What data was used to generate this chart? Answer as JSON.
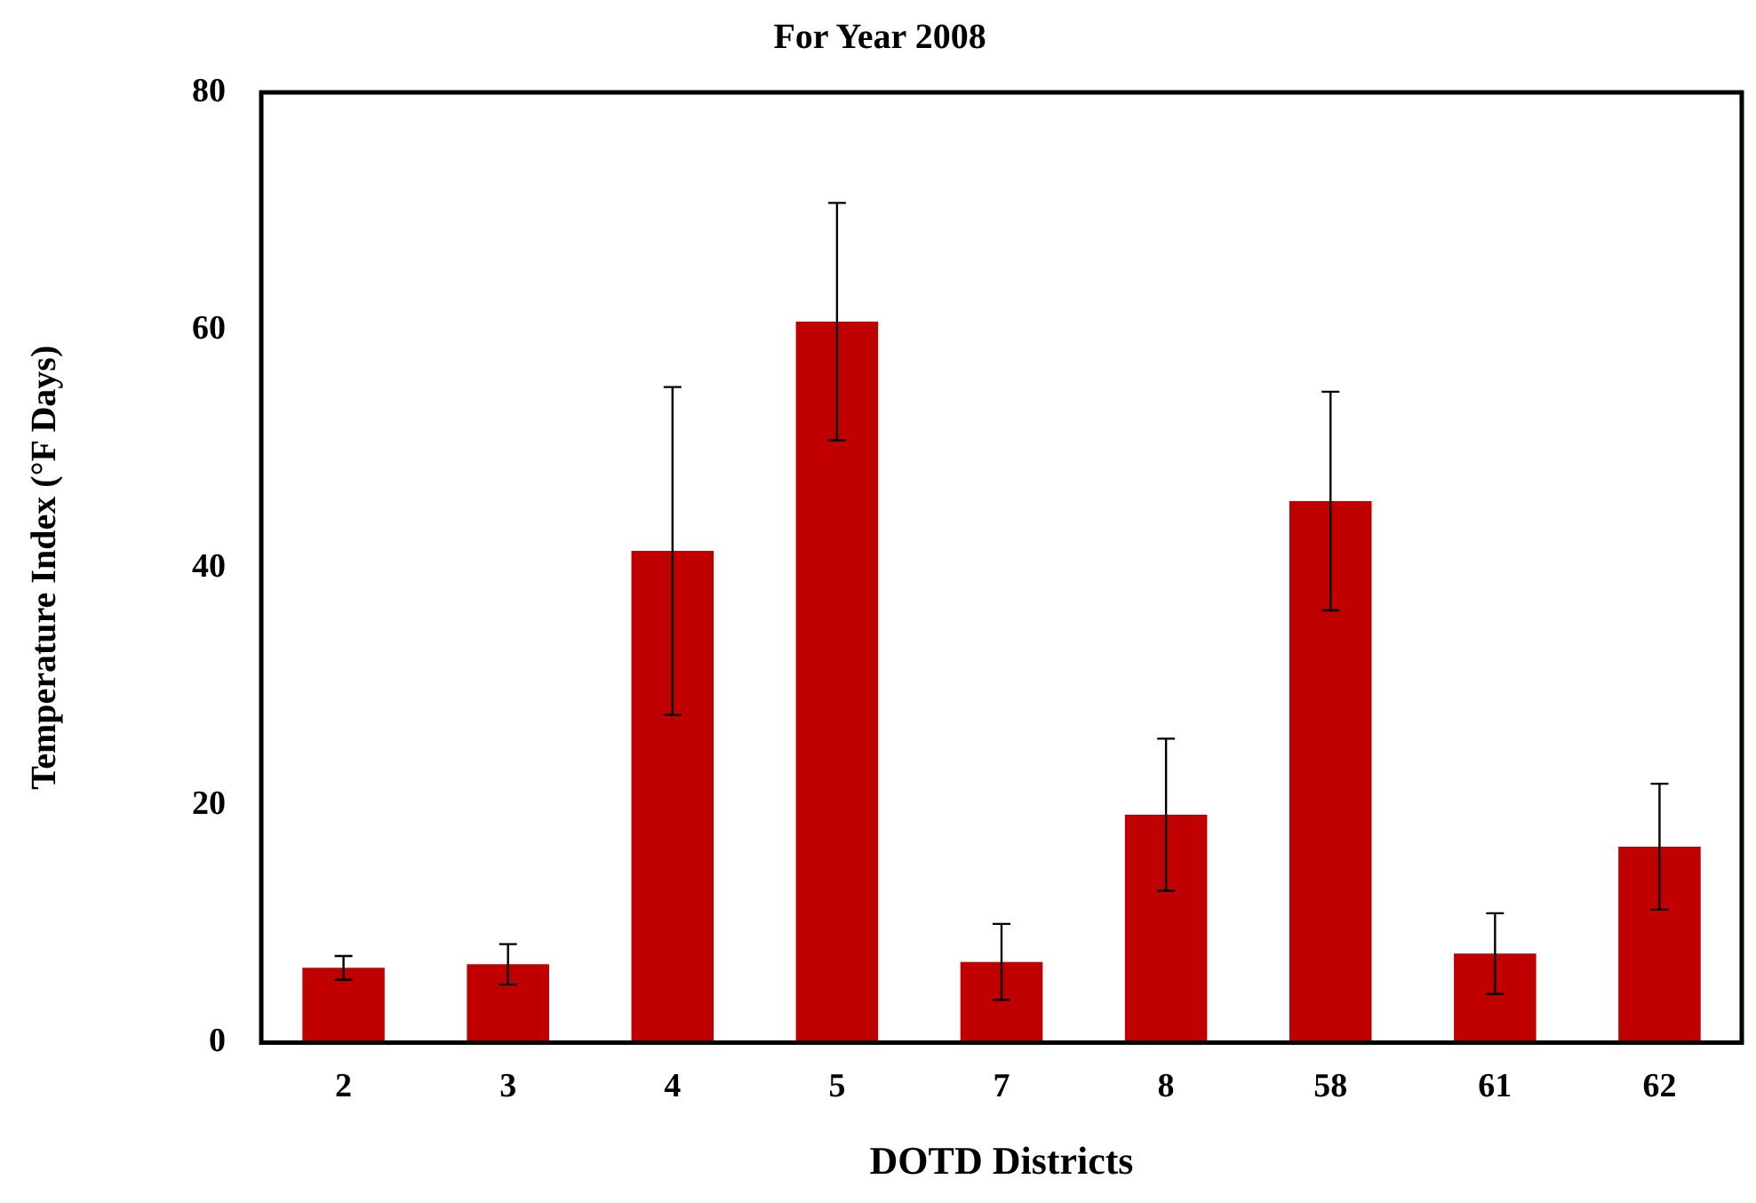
{
  "chart_data": {
    "type": "bar",
    "title": "For Year 2008",
    "xlabel": "DOTD Districts",
    "ylabel": "Temperature Index (°F Days)",
    "categories": [
      "2",
      "3",
      "4",
      "5",
      "7",
      "8",
      "58",
      "61",
      "62"
    ],
    "values": [
      6.3,
      6.6,
      41.4,
      60.7,
      6.8,
      19.2,
      45.6,
      7.5,
      16.5
    ],
    "errors": [
      1,
      1.7,
      13.8,
      10,
      3.2,
      6.4,
      9.2,
      3.4,
      5.3
    ],
    "color": "#c00000",
    "ylim": [
      0,
      80
    ],
    "yticks": [
      0,
      20,
      40,
      60,
      80
    ],
    "grid": false,
    "legend": false
  }
}
